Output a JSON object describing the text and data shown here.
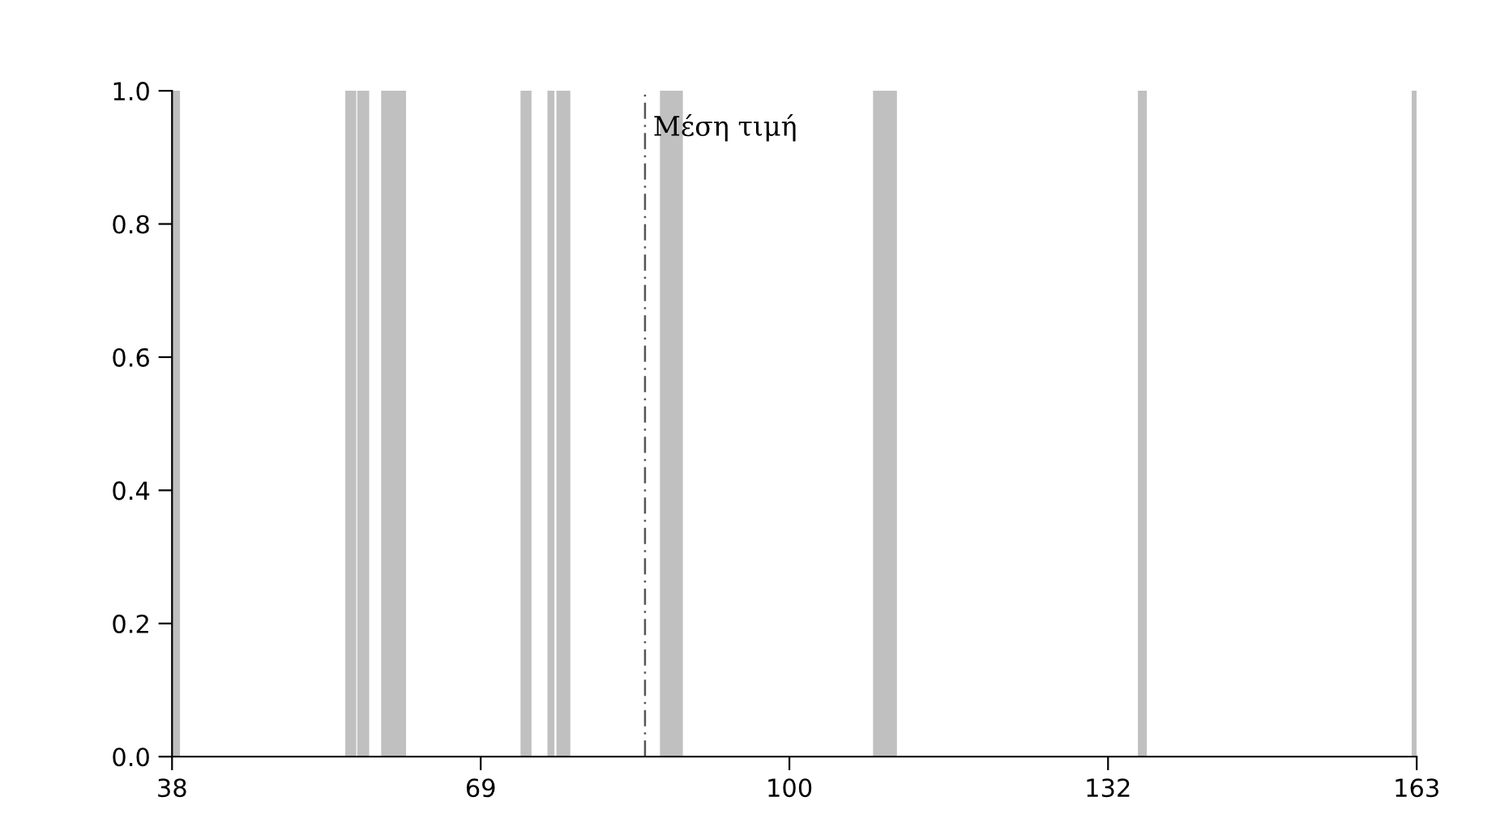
{
  "chart_data": {
    "type": "histogram",
    "bins": [
      38,
      38.8,
      55.4,
      56.5,
      56.6,
      57.8,
      59,
      61.5,
      73,
      74.1,
      75.7,
      76.4,
      76.6,
      78,
      87,
      89.3,
      108.4,
      110.8,
      135,
      135.9,
      162.5,
      163
    ],
    "values": [
      1,
      0,
      1,
      0,
      1,
      0,
      1,
      0,
      1,
      0,
      1,
      0,
      1,
      0,
      1,
      0,
      1,
      0,
      1,
      0,
      1
    ],
    "color": "#c0c0c0",
    "xlim": [
      38,
      163
    ],
    "xticks": [
      38,
      69,
      100,
      132,
      163
    ],
    "ylim": [
      0,
      1
    ],
    "yticks": [
      {
        "value": 0,
        "label": "0.0"
      },
      {
        "value": 0.2,
        "label": "0.2"
      },
      {
        "value": 0.4,
        "label": "0.4"
      },
      {
        "value": 0.6,
        "label": "0.6"
      },
      {
        "value": 0.8,
        "label": "0.8"
      },
      {
        "value": 1,
        "label": "1.0"
      }
    ],
    "ref_lines": [
      {
        "axis": "x",
        "value": 85.5,
        "label": "Μέση τιμή",
        "color": "#555555",
        "line_style": "dashed"
      }
    ],
    "grid": false,
    "legend": false
  }
}
